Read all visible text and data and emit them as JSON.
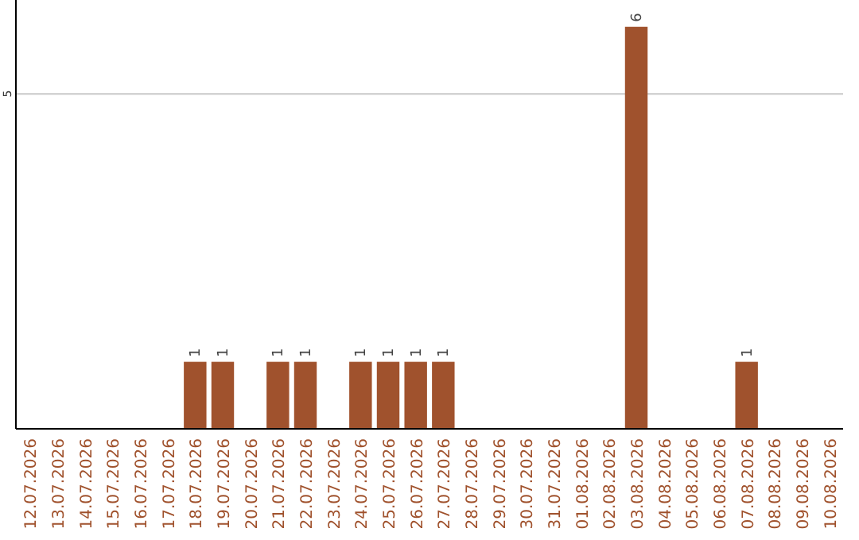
{
  "chart_data": {
    "type": "bar",
    "categories": [
      "12.07.2026",
      "13.07.2026",
      "14.07.2026",
      "15.07.2026",
      "16.07.2026",
      "17.07.2026",
      "18.07.2026",
      "19.07.2026",
      "20.07.2026",
      "21.07.2026",
      "22.07.2026",
      "23.07.2026",
      "24.07.2026",
      "25.07.2026",
      "26.07.2026",
      "27.07.2026",
      "28.07.2026",
      "29.07.2026",
      "30.07.2026",
      "31.07.2026",
      "01.08.2026",
      "02.08.2026",
      "03.08.2026",
      "04.08.2026",
      "05.08.2026",
      "06.08.2026",
      "07.08.2026",
      "08.08.2026",
      "09.08.2026",
      "10.08.2026"
    ],
    "values": [
      0,
      0,
      0,
      0,
      0,
      0,
      1,
      1,
      0,
      1,
      1,
      0,
      1,
      1,
      1,
      1,
      0,
      0,
      0,
      0,
      0,
      0,
      6,
      0,
      0,
      0,
      1,
      0,
      0,
      0
    ],
    "value_labels": [
      null,
      null,
      null,
      null,
      null,
      null,
      "1",
      "1",
      null,
      "1",
      "1",
      null,
      "1",
      "1",
      "1",
      "1",
      null,
      null,
      null,
      null,
      null,
      null,
      "6",
      null,
      null,
      null,
      "1",
      null,
      null,
      null
    ],
    "color": "#a0522d",
    "ylim": [
      0,
      6.4
    ],
    "yticks": [
      5
    ],
    "grid": "y"
  }
}
